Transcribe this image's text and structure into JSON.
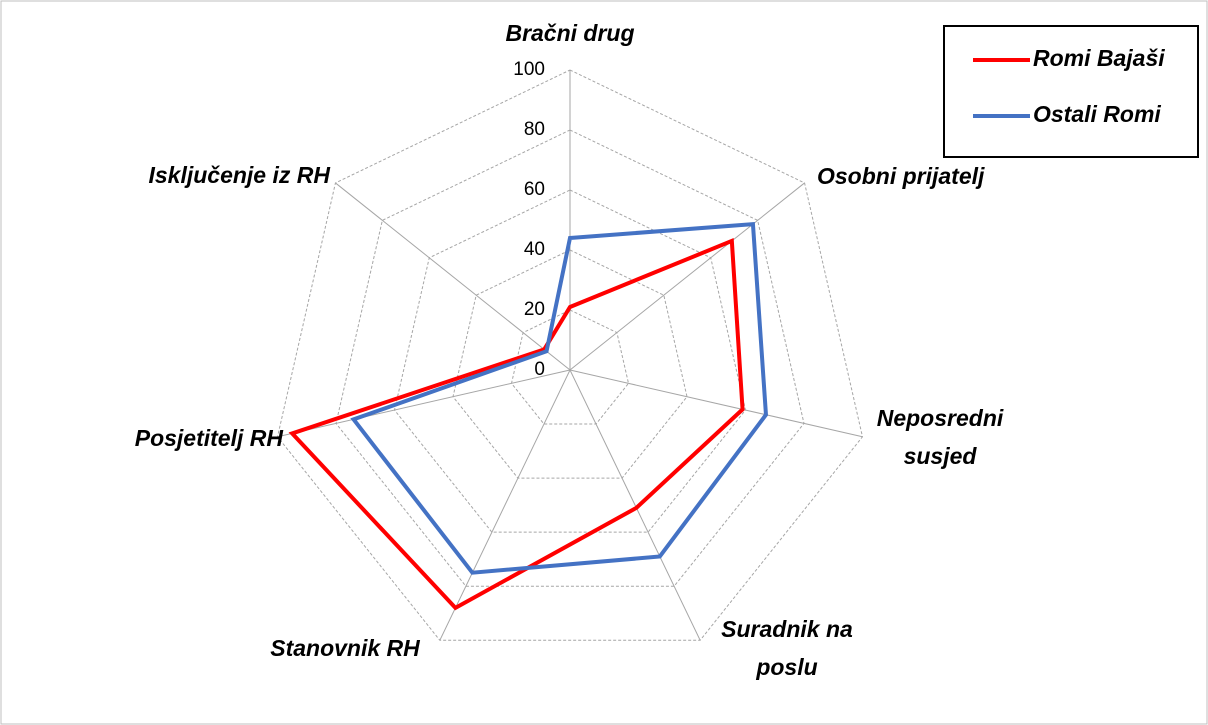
{
  "chart_data": {
    "type": "radar",
    "categories": [
      "Bračni drug",
      "Osobni prijatelj",
      "Neposredni\nsusjed",
      "Suradnik na\nposlu",
      "Stanovnik RH",
      "Posjetitelj RH",
      "Isključenje iz RH"
    ],
    "series": [
      {
        "name": "Romi Bajaši",
        "color": "#ff0000",
        "values": [
          21,
          69,
          59,
          51,
          88,
          95,
          11
        ]
      },
      {
        "name": "Ostali Romi",
        "color": "#4472c4",
        "values": [
          44,
          78,
          67,
          69,
          75,
          74,
          10
        ]
      }
    ],
    "ylim": [
      0,
      100
    ],
    "yticks": [
      0,
      20,
      40,
      60,
      80,
      100
    ],
    "grid": true,
    "legend": "top-right"
  }
}
